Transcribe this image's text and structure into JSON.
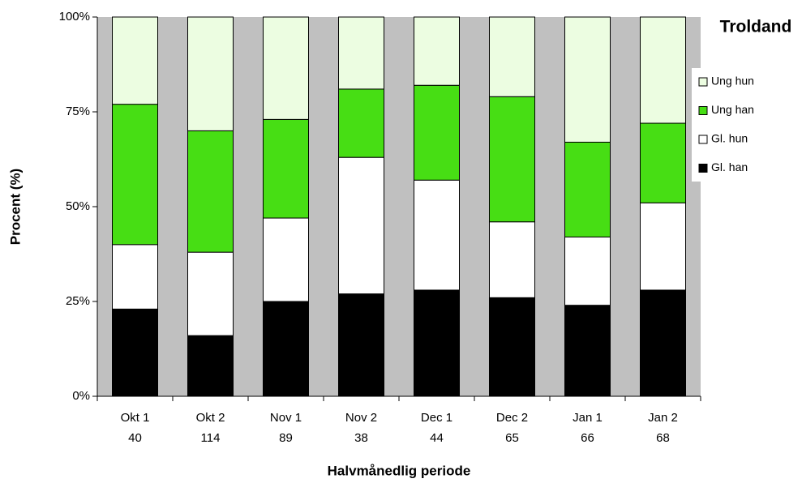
{
  "chart_data": {
    "type": "stacked_bar_percent",
    "title": "Troldand",
    "y_label": "Procent (%)",
    "x_label": "Halvmånedlig periode",
    "categories": [
      "Okt 1",
      "Okt 2",
      "Nov 1",
      "Nov 2",
      "Dec 1",
      "Dec 2",
      "Jan 1",
      "Jan 2"
    ],
    "n": [
      40,
      114,
      89,
      38,
      44,
      65,
      66,
      68
    ],
    "series": [
      {
        "name": "Gl. han",
        "color": "#000000",
        "values": [
          23,
          16,
          25,
          27,
          28,
          26,
          24,
          28
        ]
      },
      {
        "name": "Gl. hun",
        "color": "#ffffff",
        "values": [
          17,
          22,
          22,
          36,
          29,
          20,
          18,
          23
        ]
      },
      {
        "name": "Ung han",
        "color": "#47de14",
        "values": [
          37,
          32,
          26,
          18,
          25,
          33,
          25,
          21
        ]
      },
      {
        "name": "Ung hun",
        "color": "#ecfde1",
        "values": [
          23,
          30,
          27,
          19,
          18,
          21,
          33,
          28
        ]
      }
    ],
    "ylim": [
      0,
      100
    ],
    "yticks": [
      {
        "value": 0,
        "label": "0%"
      },
      {
        "value": 25,
        "label": "25%"
      },
      {
        "value": 50,
        "label": "50%"
      },
      {
        "value": 75,
        "label": "75%"
      },
      {
        "value": 100,
        "label": "100%"
      }
    ],
    "background": "#c0c0c0"
  }
}
